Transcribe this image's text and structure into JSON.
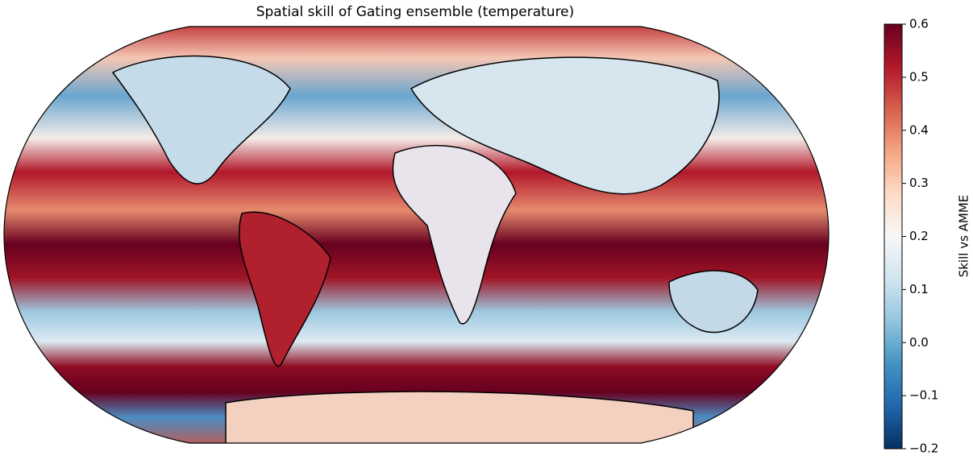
{
  "title": "Spatial skill of Gating ensemble (temperature)",
  "colorbar": {
    "label": "Skill vs AMME",
    "lim": [
      -0.2,
      0.6
    ],
    "ticks": [
      {
        "value": -0.2,
        "label": "−0.2"
      },
      {
        "value": -0.1,
        "label": "−0.1"
      },
      {
        "value": 0,
        "label": "0.0"
      },
      0.1,
      0.2,
      0.3,
      0.4,
      0.5,
      0.6
    ]
  }
}
